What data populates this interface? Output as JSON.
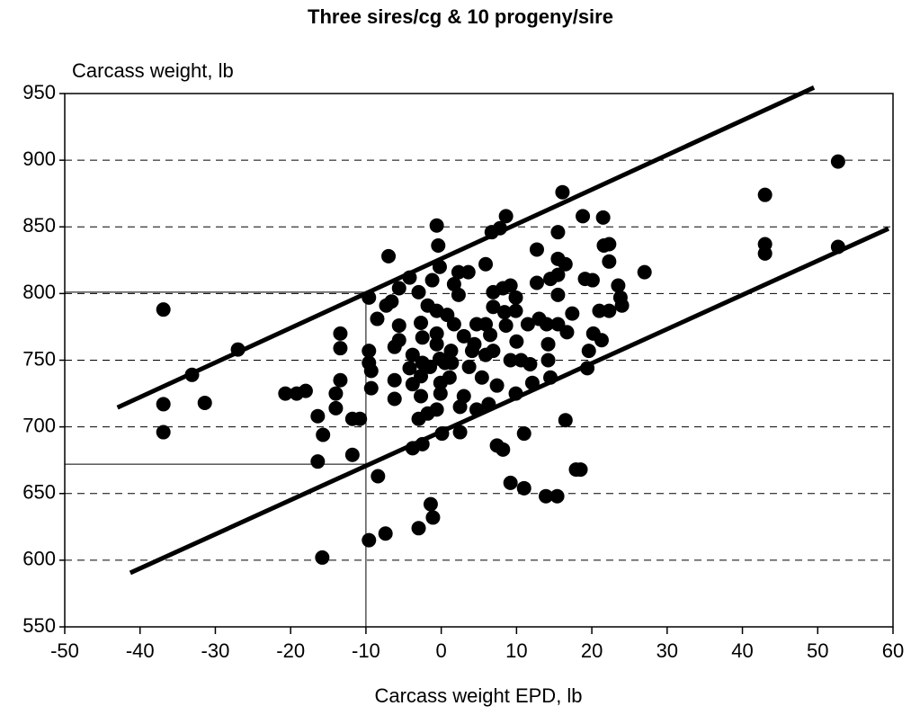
{
  "chart_data": {
    "type": "scatter",
    "title": "Three sires/cg & 10 progeny/sire",
    "y_label": "Carcass weight, lb",
    "x_label": "Carcass weight EPD, lb",
    "color": "#000000",
    "grid": true,
    "xlim": [
      -50,
      60
    ],
    "ylim": [
      550,
      950
    ],
    "xticks": [
      -50,
      -40,
      -30,
      -20,
      -10,
      0,
      10,
      20,
      30,
      40,
      50,
      60
    ],
    "yticks": [
      550,
      600,
      650,
      700,
      750,
      800,
      850,
      900,
      950
    ],
    "x": [
      -36.9,
      -36.9,
      -36.9,
      -33.1,
      -31.4,
      -27.0,
      -20.7,
      -19.2,
      -18.0,
      -16.4,
      -16.4,
      -15.7,
      -15.8,
      -13.4,
      -13.4,
      -13.4,
      -14.0,
      -14.0,
      -11.8,
      -10.8,
      -11.8,
      -9.6,
      -9.6,
      -9.6,
      -9.3,
      -9.3,
      -9.6,
      -8.4,
      -8.5,
      -7.4,
      -7.0,
      -7.3,
      -6.6,
      -5.6,
      -5.6,
      -5.6,
      -6.2,
      -6.2,
      -6.2,
      -4.2,
      -3.0,
      -3.8,
      -4.2,
      -3.8,
      -3.8,
      -3.0,
      -2.7,
      -2.5,
      -2.5,
      -2.7,
      -2.7,
      -3.0,
      -2.5,
      -1.8,
      -1.8,
      -1.2,
      -1.4,
      -1.1,
      -0.6,
      -0.4,
      -0.2,
      -0.6,
      -0.6,
      -0.6,
      -0.2,
      -0.1,
      -0.1,
      -0.6,
      0.1,
      0.8,
      1.3,
      1.4,
      1.7,
      2.3,
      2.3,
      2.5,
      2.5,
      3.0,
      3.0,
      3.6,
      3.7,
      4.1,
      4.7,
      4.7,
      5.4,
      5.9,
      5.9,
      5.9,
      6.3,
      6.7,
      6.9,
      6.9,
      6.9,
      7.4,
      7.4,
      7.8,
      8.2,
      8.2,
      8.6,
      8.4,
      8.6,
      9.2,
      9.2,
      9.2,
      9.9,
      9.9,
      9.9,
      10.6,
      11.0,
      11.0,
      11.8,
      12.1,
      12.7,
      12.7,
      13.0,
      13.9,
      14.0,
      14.2,
      14.2,
      14.5,
      14.5,
      15.5,
      15.5,
      15.5,
      15.5,
      15.5,
      15.4,
      16.1,
      16.5,
      16.5,
      16.7,
      17.4,
      17.9,
      18.5,
      18.8,
      19.1,
      19.4,
      19.6,
      20.1,
      20.2,
      21.0,
      21.3,
      21.5,
      21.6,
      22.3,
      22.3,
      22.3,
      23.5,
      23.8,
      24.0,
      27.0,
      43.0,
      43.0,
      43.0,
      52.7,
      52.7,
      -1.5,
      0.5,
      1.7,
      4.4,
      6.5,
      10.0,
      11.5,
      1.1
    ],
    "values": [
      788,
      717,
      696,
      739,
      718,
      758,
      725,
      725,
      727,
      708,
      674,
      694,
      602,
      770,
      759,
      735,
      725,
      714,
      706,
      706,
      679,
      797,
      757,
      748,
      742,
      729,
      615,
      663,
      781,
      620,
      828,
      791,
      794,
      804,
      776,
      765,
      760,
      735,
      721,
      812,
      801,
      754,
      744,
      732,
      684,
      624,
      778,
      767,
      748,
      738,
      723,
      706,
      687,
      791,
      710,
      810,
      642,
      632,
      851,
      836,
      820,
      787,
      770,
      762,
      751,
      733,
      725,
      713,
      695,
      784,
      757,
      748,
      807,
      816,
      799,
      715,
      696,
      768,
      723,
      816,
      745,
      757,
      777,
      713,
      737,
      822,
      777,
      754,
      717,
      846,
      801,
      790,
      757,
      731,
      686,
      849,
      683,
      804,
      858,
      786,
      776,
      806,
      750,
      658,
      797,
      787,
      725,
      750,
      695,
      654,
      747,
      733,
      833,
      808,
      781,
      648,
      777,
      762,
      750,
      737,
      811,
      846,
      826,
      814,
      799,
      777,
      648,
      876,
      822,
      705,
      771,
      785,
      668,
      668,
      858,
      811,
      744,
      757,
      810,
      770,
      787,
      765,
      857,
      836,
      787,
      824,
      837,
      806,
      797,
      791,
      816,
      874,
      837,
      830,
      899,
      835,
      745,
      748,
      777,
      762,
      769,
      764,
      777,
      737
    ],
    "fit_lines": [
      {
        "x": [
          -43,
          49.5
        ],
        "y": [
          714.5,
          954.5
        ]
      },
      {
        "x": [
          -41.3,
          59.4
        ],
        "y": [
          590.5,
          848.7
        ]
      }
    ],
    "reference_lines": [
      {
        "x": [
          -10,
          -10
        ],
        "y": [
          550,
          801
        ]
      },
      {
        "x": [
          -50,
          -10
        ],
        "y": [
          801,
          801
        ]
      },
      {
        "x": [
          -50,
          -10
        ],
        "y": [
          672,
          672
        ]
      }
    ]
  }
}
